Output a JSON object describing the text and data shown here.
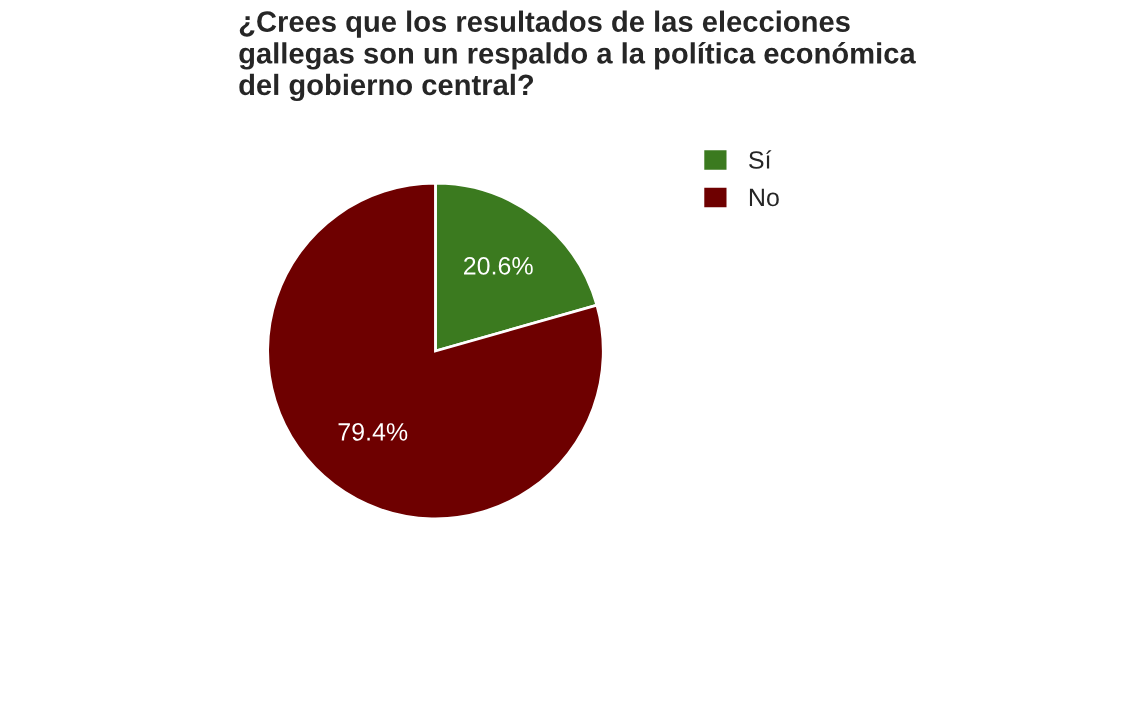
{
  "chart_data": {
    "type": "pie",
    "title": "¿Crees que los resultados de las elecciones\ngallegas son un respaldo a la política económica\ndel gobierno central?",
    "categories": [
      "Sí",
      "No"
    ],
    "values": [
      20.6,
      79.4
    ],
    "colors": [
      "#3b7a1f",
      "#6e0000"
    ],
    "value_labels": [
      "20.6%",
      "79.4%"
    ],
    "legend": "right"
  }
}
